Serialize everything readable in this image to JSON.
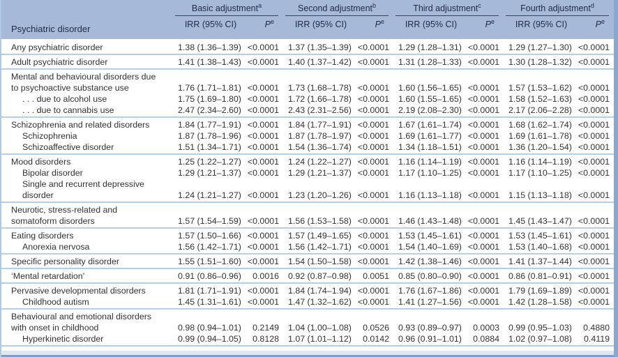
{
  "colors": {
    "header_bg": "#a6b9d8",
    "header_text": "#1f2b45",
    "group_rule": "#35415f",
    "section_separator": "#b5cfe8",
    "body_text": "#333333",
    "left_border": "#b0c9e4",
    "right_border": "#87a8d0",
    "footer_band": "#dde6f1",
    "footer_edge": "#7d9ecb"
  },
  "header": {
    "row_label": "Psychiatric disorder",
    "irr_label": "IRR (95% CI)",
    "p_label": "P",
    "p_sup": "e",
    "groups": [
      {
        "label": "Basic adjustment",
        "sup": "a"
      },
      {
        "label": "Second adjustment",
        "sup": "b"
      },
      {
        "label": "Third adjustment",
        "sup": "c"
      },
      {
        "label": "Fourth adjustment",
        "sup": "d"
      }
    ]
  },
  "sections": [
    {
      "rows": [
        {
          "lines": [
            "Any psychiatric disorder"
          ],
          "indent": false,
          "values": [
            "1.38 (1.36–1.39)",
            "<0.0001",
            "1.37 (1.35–1.39)",
            "<0.0001",
            "1.29 (1.28–1.31)",
            "<0.0001",
            "1.29 (1.27–1.30)",
            "<0.0001"
          ]
        }
      ]
    },
    {
      "rows": [
        {
          "lines": [
            "Adult psychiatric disorder"
          ],
          "indent": false,
          "values": [
            "1.41 (1.38–1.43)",
            "<0.0001",
            "1.40 (1.37–1.42)",
            "<0.0001",
            "1.31 (1.28–1.33)",
            "<0.0001",
            "1.30 (1.28–1.32)",
            "<0.0001"
          ]
        }
      ]
    },
    {
      "rows": [
        {
          "lines": [
            "Mental and behavioural disorders due",
            "to psychoactive substance use"
          ],
          "indent": false,
          "values": [
            "1.76 (1.71–1.81)",
            "<0.0001",
            "1.73 (1.68–1.78)",
            "<0.0001",
            "1.60 (1.56–1.65)",
            "<0.0001",
            "1.57 (1.53–1.62)",
            "<0.0001"
          ]
        },
        {
          "lines": [
            ". . . due to alcohol use"
          ],
          "indent": true,
          "values": [
            "1.75 (1.69–1.80)",
            "<0.0001",
            "1.72 (1.66–1.78)",
            "<0.0001",
            "1.60 (1.55–1.65)",
            "<0.0001",
            "1.58 (1.52–1.63)",
            "<0.0001"
          ]
        },
        {
          "lines": [
            ". . . due to cannabis use"
          ],
          "indent": true,
          "values": [
            "2.47 (2.34–2.60)",
            "<0.0001",
            "2.43 (2.31–2.56)",
            "<0.0001",
            "2.19 (2.08–2.30)",
            "<0.0001",
            "2.17 (2.06–2.28)",
            "<0.0001"
          ]
        }
      ]
    },
    {
      "rows": [
        {
          "lines": [
            "Schizophrenia and related disorders"
          ],
          "indent": false,
          "values": [
            "1.84 (1.77–1.91)",
            "<0.0001",
            "1.84 (1.77–1.91)",
            "<0.0001",
            "1.67 (1.61–1.74)",
            "<0.0001",
            "1.68 (1.62–1.74)",
            "<0.0001"
          ]
        },
        {
          "lines": [
            "Schizophrenia"
          ],
          "indent": true,
          "values": [
            "1.87 (1.78–1.96)",
            "<0.0001",
            "1.87 (1.78–1.97)",
            "<0.0001",
            "1.69 (1.61–1.77)",
            "<0.0001",
            "1.69 (1.61–1.78)",
            "<0.0001"
          ]
        },
        {
          "lines": [
            "Schizoaffective disorder"
          ],
          "indent": true,
          "values": [
            "1.51 (1.34–1.71)",
            "<0.0001",
            "1.54 (1.36–1.74)",
            "<0.0001",
            "1.34 (1.18–1.51)",
            "<0.0001",
            "1.36 (1.20–1.54)",
            "<0.0001"
          ]
        }
      ]
    },
    {
      "rows": [
        {
          "lines": [
            "Mood disorders"
          ],
          "indent": false,
          "values": [
            "1.25 (1.22–1.27)",
            "<0.0001",
            "1.24 (1.22–1.27)",
            "<0.0001",
            "1.16 (1.14–1.19)",
            "<0.0001",
            "1.16 (1.14–1.19)",
            "<0.0001"
          ]
        },
        {
          "lines": [
            "Bipolar disorder"
          ],
          "indent": true,
          "values": [
            "1.29 (1.21–1.37)",
            "<0.0001",
            "1.29 (1.21–1.37)",
            "<0.0001",
            "1.17 (1.10–1.25)",
            "<0.0001",
            "1.17 (1.10–1.25)",
            "<0.0001"
          ]
        },
        {
          "lines": [
            "Single and recurrent depressive",
            "disorder"
          ],
          "indent": true,
          "values": [
            "1.24 (1.21–1.27)",
            "<0.0001",
            "1.23 (1.20–1.26)",
            "<0.0001",
            "1.16 (1.13–1.18)",
            "<0.0001",
            "1.15 (1.13–1.18)",
            "<0.0001"
          ]
        }
      ]
    },
    {
      "rows": [
        {
          "lines": [
            "Neurotic, stress-related and",
            "somatoform disorders"
          ],
          "indent": false,
          "values": [
            "1.57 (1.54–1.59)",
            "<0.0001",
            "1.56 (1.53–1.58)",
            "<0.0001",
            "1.46 (1.43–1.48)",
            "<0.0001",
            "1.45 (1.43–1.47)",
            "<0.0001"
          ]
        }
      ]
    },
    {
      "rows": [
        {
          "lines": [
            "Eating disorders"
          ],
          "indent": false,
          "values": [
            "1.57 (1.50–1.66)",
            "<0.0001",
            "1.57 (1.49–1.65)",
            "<0.0001",
            "1.53 (1.45–1.61)",
            "<0.0001",
            "1.53 (1.45–1.61)",
            "<0.0001"
          ]
        },
        {
          "lines": [
            "Anorexia nervosa"
          ],
          "indent": true,
          "values": [
            "1.56 (1.42–1.71)",
            "<0.0001",
            "1.56 (1.42–1.71)",
            "<0.0001",
            "1.54 (1.40–1.69)",
            "<0.0001",
            "1.53 (1.40–1.68)",
            "<0.0001"
          ]
        }
      ]
    },
    {
      "rows": [
        {
          "lines": [
            "Specific personality disorder"
          ],
          "indent": false,
          "values": [
            "1.55 (1.51–1.60)",
            "<0.0001",
            "1.54 (1.50–1.58)",
            "<0.0001",
            "1.42 (1.38–1.46)",
            "<0.0001",
            "1.41 (1.37–1.44)",
            "<0.0001"
          ]
        }
      ]
    },
    {
      "rows": [
        {
          "lines": [
            "‘Mental retardation’"
          ],
          "indent": false,
          "values": [
            "0.91 (0.86–0.96)",
            "0.0016",
            "0.92 (0.87–0.98)",
            "0.0051",
            "0.85 (0.80–0.90)",
            "<0.0001",
            "0.86 (0.81–0.91)",
            "<0.0001"
          ]
        }
      ]
    },
    {
      "rows": [
        {
          "lines": [
            "Pervasive developmental disorders"
          ],
          "indent": false,
          "values": [
            "1.81 (1.71–1.91)",
            "<0.0001",
            "1.84 (1.74–1.94)",
            "<0.0001",
            "1.76 (1.67–1.86)",
            "<0.0001",
            "1.79 (1.69–1.89)",
            "<0.0001"
          ]
        },
        {
          "lines": [
            "Childhood autism"
          ],
          "indent": true,
          "values": [
            "1.45 (1.31–1.61)",
            "<0.0001",
            "1.47 (1.32–1.62)",
            "<0.0001",
            "1.41 (1.27–1.56)",
            "<0.0001",
            "1.42 (1.28–1.58)",
            "<0.0001"
          ]
        }
      ]
    },
    {
      "rows": [
        {
          "lines": [
            "Behavioural and emotional disorders",
            "with onset in childhood"
          ],
          "indent": false,
          "values": [
            "0.98 (0.94–1.01)",
            "0.2149",
            "1.04 (1.00–1.08)",
            "0.0526",
            "0.93 (0.89–0.97)",
            "0.0003",
            "0.99 (0.95–1.03)",
            "0.4880"
          ]
        },
        {
          "lines": [
            "Hyperkinetic disorder"
          ],
          "indent": true,
          "values": [
            "0.99 (0.94–1.05)",
            "0.8128",
            "1.07 (1.01–1.12)",
            "0.0142",
            "0.96 (0.91–1.01)",
            "0.0884",
            "1.02 (0.97–1.08)",
            "0.4119"
          ]
        }
      ]
    }
  ]
}
